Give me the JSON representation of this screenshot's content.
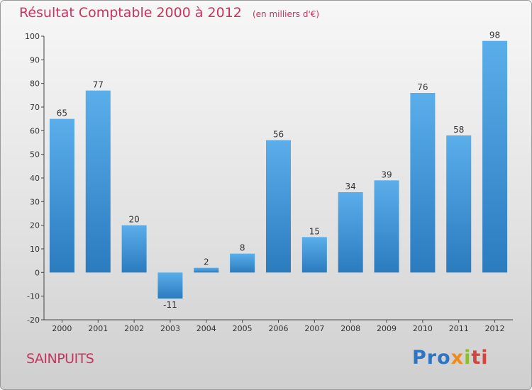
{
  "title": "Résultat Comptable 2000 à 2012",
  "unit": "(en milliers d'€)",
  "commune": "SAINPUITS",
  "logo": {
    "p1": "Pro",
    "p2": "x",
    "p3": "i",
    "p4": "ti"
  },
  "colors": {
    "bar_top": "#5aaeea",
    "bar_bottom": "#2b7bbf",
    "title": "#c8345e"
  },
  "chart_data": {
    "type": "bar",
    "title": "Résultat Comptable 2000 à 2012",
    "subtitle": "(en milliers d'€)",
    "xlabel": "",
    "ylabel": "",
    "categories": [
      "2000",
      "2001",
      "2002",
      "2003",
      "2004",
      "2005",
      "2006",
      "2007",
      "2008",
      "2009",
      "2010",
      "2011",
      "2012"
    ],
    "values": [
      65,
      77,
      20,
      -11,
      2,
      8,
      56,
      15,
      34,
      39,
      76,
      58,
      98
    ],
    "value_labels": [
      "65",
      "77",
      "20",
      "-11",
      "2",
      "8",
      "56",
      "15",
      "34",
      "39",
      "76",
      "58",
      "98"
    ],
    "ylim": [
      -20,
      100
    ],
    "yticks": [
      -20,
      -10,
      0,
      10,
      20,
      30,
      40,
      50,
      60,
      70,
      80,
      90,
      100
    ],
    "ytick_labels": [
      "-20",
      "-10",
      "0",
      "10",
      "20",
      "30",
      "40",
      "50",
      "60",
      "70",
      "80",
      "90",
      "100"
    ],
    "grid": false
  }
}
